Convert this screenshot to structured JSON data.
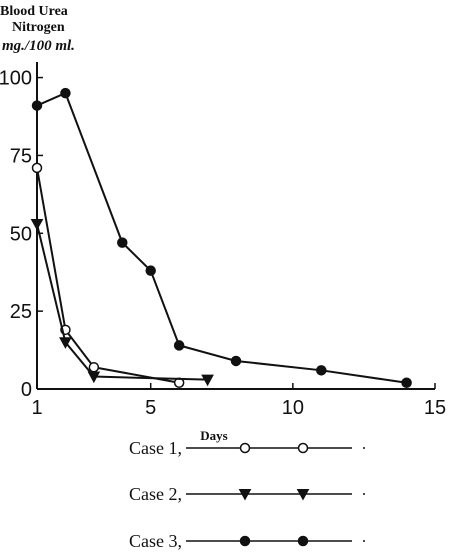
{
  "chart_data": {
    "type": "line",
    "ylabel": [
      "Blood Urea",
      "Nitrogen",
      "mg./100 ml."
    ],
    "xlabel": "Days",
    "xlim": [
      1,
      15
    ],
    "ylim": [
      0,
      105
    ],
    "xticks": [
      1,
      5,
      10,
      15
    ],
    "yticks": [
      0,
      25,
      50,
      75,
      100
    ],
    "series": [
      {
        "name": "Case 1,",
        "marker": "open-circle",
        "x": [
          1,
          2,
          3,
          6
        ],
        "y": [
          71,
          19,
          7,
          2
        ]
      },
      {
        "name": "Case 2,",
        "marker": "filled-triangle",
        "x": [
          1,
          2,
          3,
          7
        ],
        "y": [
          53,
          15,
          4,
          3
        ]
      },
      {
        "name": "Case 3,",
        "marker": "filled-circle",
        "x": [
          1,
          2,
          4,
          5,
          6,
          8,
          11,
          14
        ],
        "y": [
          91,
          95,
          47,
          38,
          14,
          9,
          6,
          2
        ]
      }
    ]
  }
}
